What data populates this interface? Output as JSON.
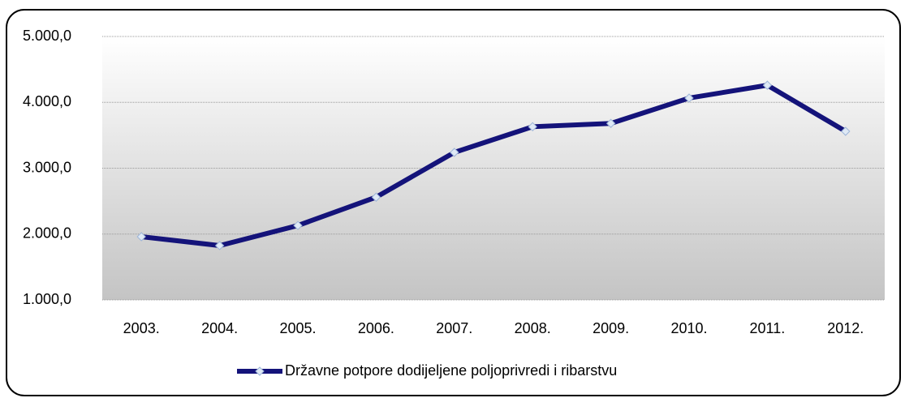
{
  "chart_data": {
    "type": "line",
    "categories": [
      "2003.",
      "2004.",
      "2005.",
      "2006.",
      "2007.",
      "2008.",
      "2009.",
      "2010.",
      "2011.",
      "2012."
    ],
    "series": [
      {
        "name": "Državne potpore dodijeljene poljoprivredi i ribarstvu",
        "color": "#14137a",
        "values": [
          1960,
          1825,
          2130,
          2560,
          3240,
          3630,
          3680,
          4065,
          4260,
          3560
        ]
      }
    ],
    "ylim": [
      1000,
      5000
    ],
    "yticks": [
      {
        "value": 1000,
        "label": "1.000,0"
      },
      {
        "value": 2000,
        "label": "2.000,0"
      },
      {
        "value": 3000,
        "label": "3.000,0"
      },
      {
        "value": 4000,
        "label": "4.000,0"
      },
      {
        "value": 5000,
        "label": "5.000,0"
      }
    ],
    "grid": true,
    "legend": "bottom"
  }
}
